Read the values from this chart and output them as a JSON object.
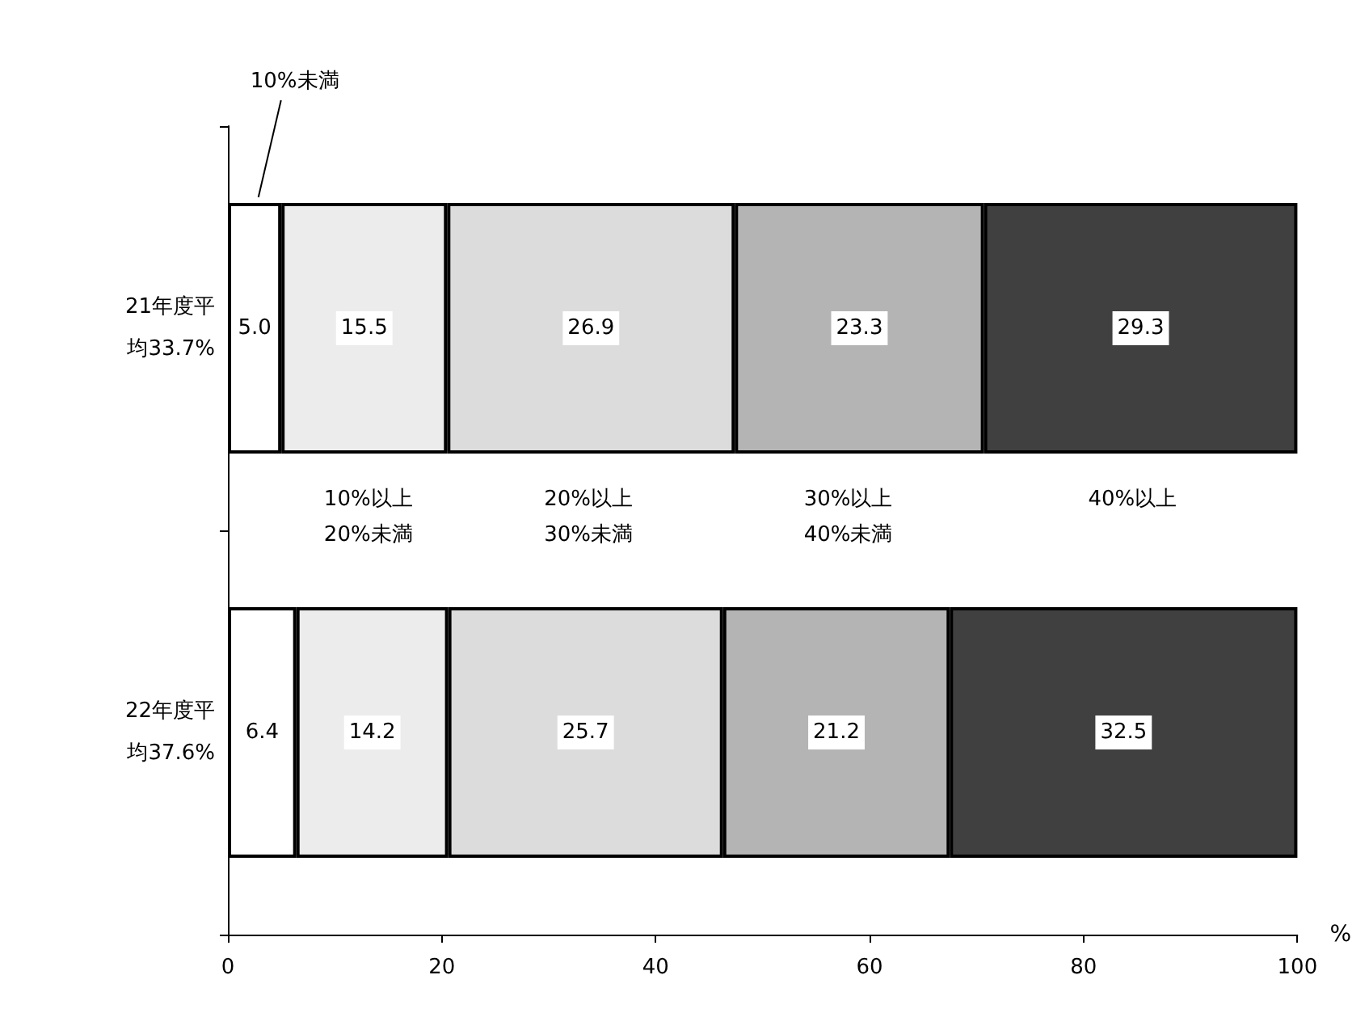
{
  "chart_data": {
    "type": "bar",
    "orientation": "horizontal",
    "stacked": true,
    "categories": [
      "21年度平均33.7%",
      "22年度平均37.6%"
    ],
    "xlabel": "%",
    "xlim": [
      0,
      100
    ],
    "xticks": [
      0,
      20,
      40,
      60,
      80,
      100
    ],
    "grid": false,
    "series": [
      {
        "name": "10%未満",
        "color": "#ffffff",
        "values": [
          5.0,
          6.4
        ],
        "value_labels": [
          "5.0",
          "6.4"
        ]
      },
      {
        "name": "10%以上\n20%未満",
        "color": "#ececec",
        "values": [
          15.5,
          14.2
        ],
        "value_labels": [
          "15.5",
          "14.2"
        ]
      },
      {
        "name": "20%以上\n30%未満",
        "color": "#dcdcdc",
        "values": [
          26.9,
          25.7
        ],
        "value_labels": [
          "26.9",
          "25.7"
        ]
      },
      {
        "name": "30%以上\n40%未満",
        "color": "#b4b4b4",
        "values": [
          23.3,
          21.2
        ],
        "value_labels": [
          "23.3",
          "21.2"
        ]
      },
      {
        "name": "40%以上",
        "color": "#404040",
        "values": [
          29.3,
          32.5
        ],
        "value_labels": [
          "29.3",
          "32.5"
        ]
      }
    ]
  }
}
